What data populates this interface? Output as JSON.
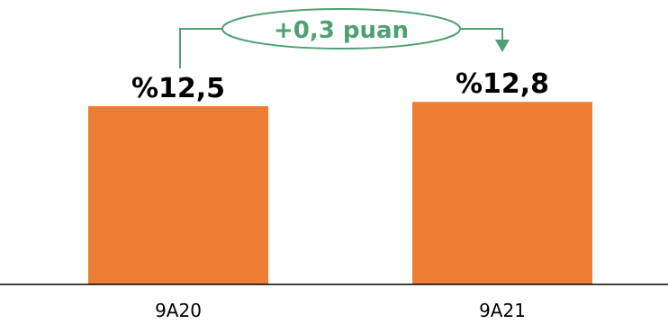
{
  "chart_data": {
    "type": "bar",
    "categories": [
      "9A20",
      "9A21"
    ],
    "values": [
      12.5,
      12.8
    ],
    "value_labels": [
      "%12,5",
      "%12,8"
    ],
    "annotation": "+0,3 puan",
    "colors": {
      "bar": "#ED7D31",
      "annotation": "#4EA072",
      "axis": "#000000"
    },
    "grid": false
  }
}
